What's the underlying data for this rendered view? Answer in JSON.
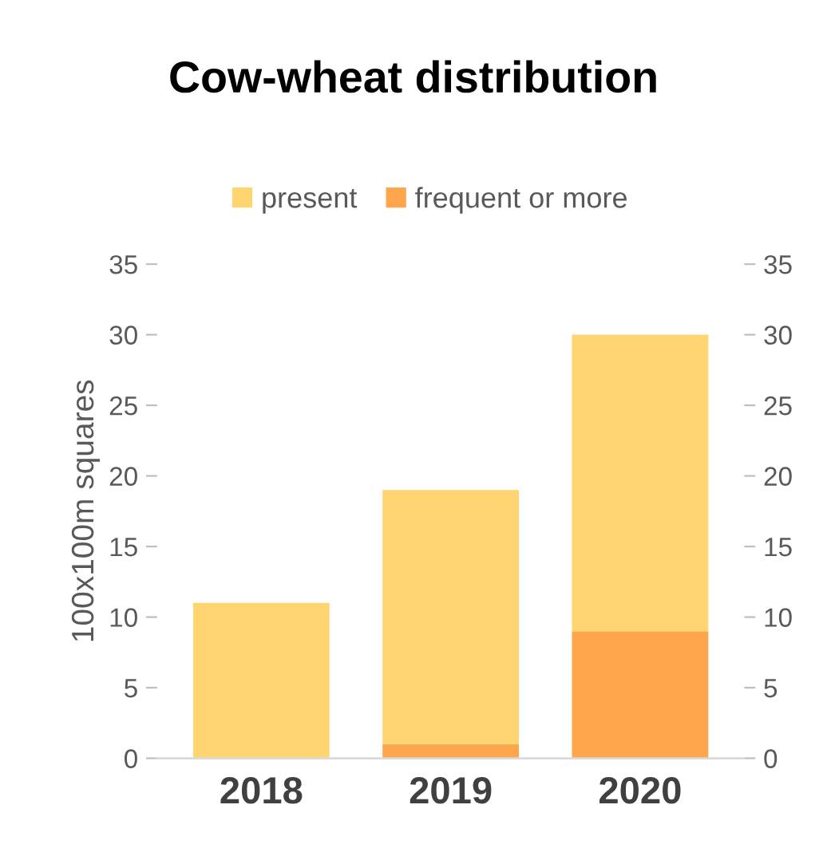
{
  "chart_data": {
    "type": "bar",
    "title": "Cow-wheat distribution",
    "ylabel": "100x100m squares",
    "categories": [
      "2018",
      "2019",
      "2020"
    ],
    "stacked": true,
    "series": [
      {
        "name": "frequent or more",
        "color": "#ffa64d",
        "values": [
          0,
          1,
          9
        ]
      },
      {
        "name": "present",
        "color": "#ffd571",
        "values": [
          11,
          18,
          21
        ]
      }
    ],
    "ylim": [
      0,
      35
    ],
    "yticks": [
      0,
      5,
      10,
      15,
      20,
      25,
      30,
      35
    ],
    "y2lim": [
      0,
      35
    ],
    "y2ticks": [
      0,
      5,
      10,
      15,
      20,
      25,
      30,
      35
    ],
    "grid": false,
    "legend": "top"
  }
}
